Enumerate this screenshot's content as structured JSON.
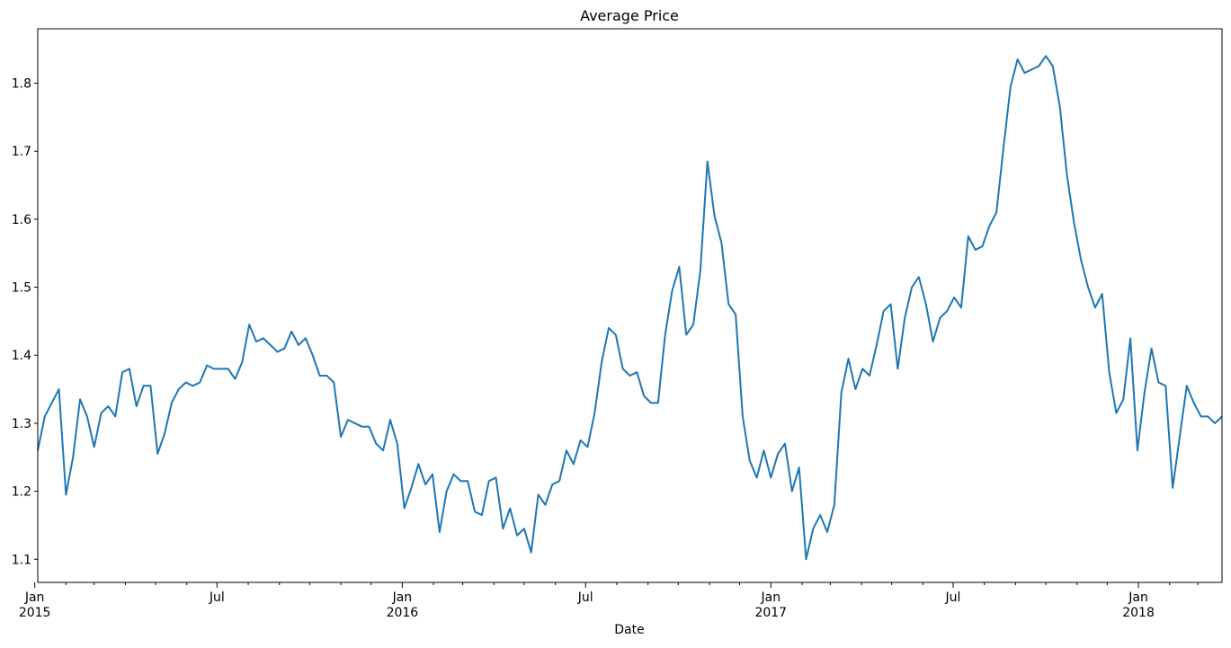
{
  "chart_data": {
    "type": "line",
    "title": "Average Price",
    "xlabel": "Date",
    "ylabel": "",
    "grid": false,
    "legend": "none",
    "color": "#1f77b4",
    "xlim": [
      "2015-01-04",
      "2018-03-25"
    ],
    "ylim": [
      1.066,
      1.88
    ],
    "yticks": [
      1.1,
      1.2,
      1.3,
      1.4,
      1.5,
      1.6,
      1.7,
      1.8
    ],
    "ytick_labels": [
      "1.1",
      "1.2",
      "1.3",
      "1.4",
      "1.5",
      "1.6",
      "1.7",
      "1.8"
    ],
    "xticks": [
      {
        "date": "2015-01-01",
        "label": "Jan",
        "sublabel": "2015"
      },
      {
        "date": "2015-07-01",
        "label": "Jul",
        "sublabel": ""
      },
      {
        "date": "2016-01-01",
        "label": "Jan",
        "sublabel": "2016"
      },
      {
        "date": "2016-07-01",
        "label": "Jul",
        "sublabel": ""
      },
      {
        "date": "2017-01-01",
        "label": "Jan",
        "sublabel": "2017"
      },
      {
        "date": "2017-07-01",
        "label": "Jul",
        "sublabel": ""
      },
      {
        "date": "2018-01-01",
        "label": "Jan",
        "sublabel": "2018"
      }
    ],
    "minor_ticks": [
      "2015-02-01",
      "2015-03-01",
      "2015-04-01",
      "2015-05-01",
      "2015-06-01",
      "2015-08-01",
      "2015-09-01",
      "2015-10-01",
      "2015-11-01",
      "2015-12-01",
      "2016-02-01",
      "2016-03-01",
      "2016-04-01",
      "2016-05-01",
      "2016-06-01",
      "2016-08-01",
      "2016-09-01",
      "2016-10-01",
      "2016-11-01",
      "2016-12-01",
      "2017-02-01",
      "2017-03-01",
      "2017-04-01",
      "2017-05-01",
      "2017-06-01",
      "2017-08-01",
      "2017-09-01",
      "2017-10-01",
      "2017-11-01",
      "2017-12-01",
      "2018-02-01",
      "2018-03-01"
    ],
    "start_date": "2015-01-04",
    "step_days": 7,
    "values": [
      1.26,
      1.31,
      1.33,
      1.35,
      1.195,
      1.25,
      1.335,
      1.31,
      1.265,
      1.315,
      1.325,
      1.31,
      1.375,
      1.38,
      1.325,
      1.355,
      1.355,
      1.255,
      1.285,
      1.33,
      1.35,
      1.36,
      1.355,
      1.36,
      1.385,
      1.38,
      1.38,
      1.38,
      1.365,
      1.39,
      1.445,
      1.42,
      1.425,
      1.415,
      1.405,
      1.41,
      1.435,
      1.415,
      1.425,
      1.4,
      1.37,
      1.37,
      1.36,
      1.28,
      1.305,
      1.3,
      1.295,
      1.295,
      1.27,
      1.26,
      1.305,
      1.27,
      1.175,
      1.205,
      1.24,
      1.21,
      1.225,
      1.14,
      1.2,
      1.225,
      1.215,
      1.215,
      1.17,
      1.165,
      1.215,
      1.22,
      1.145,
      1.175,
      1.135,
      1.145,
      1.11,
      1.195,
      1.18,
      1.21,
      1.215,
      1.26,
      1.24,
      1.275,
      1.265,
      1.315,
      1.39,
      1.44,
      1.43,
      1.38,
      1.37,
      1.375,
      1.34,
      1.33,
      1.33,
      1.43,
      1.495,
      1.53,
      1.43,
      1.445,
      1.525,
      1.685,
      1.605,
      1.565,
      1.475,
      1.46,
      1.31,
      1.245,
      1.22,
      1.26,
      1.22,
      1.255,
      1.27,
      1.2,
      1.235,
      1.1,
      1.145,
      1.165,
      1.14,
      1.18,
      1.345,
      1.395,
      1.35,
      1.38,
      1.37,
      1.415,
      1.465,
      1.475,
      1.38,
      1.455,
      1.5,
      1.515,
      1.475,
      1.42,
      1.455,
      1.465,
      1.485,
      1.47,
      1.575,
      1.555,
      1.56,
      1.59,
      1.61,
      1.705,
      1.795,
      1.835,
      1.815,
      1.82,
      1.825,
      1.84,
      1.825,
      1.765,
      1.665,
      1.595,
      1.54,
      1.5,
      1.47,
      1.49,
      1.375,
      1.315,
      1.335,
      1.425,
      1.26,
      1.345,
      1.41,
      1.36,
      1.355,
      1.205,
      1.28,
      1.355,
      1.33,
      1.31,
      1.31,
      1.3,
      1.31
    ]
  }
}
